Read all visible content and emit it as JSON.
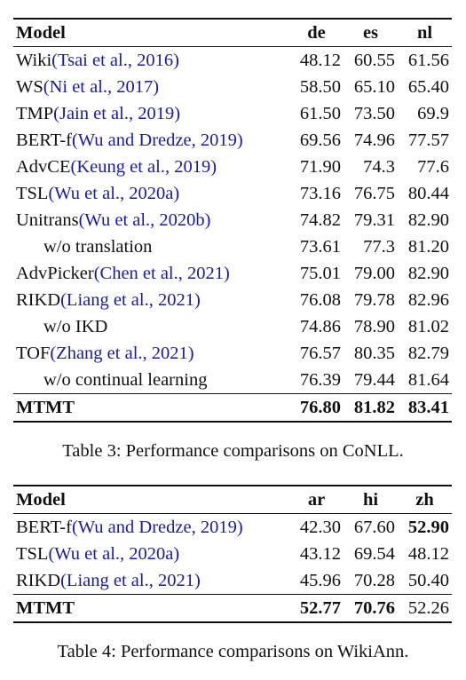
{
  "table3": {
    "headers": {
      "model": "Model",
      "c1": "de",
      "c2": "es",
      "c3": "nl"
    },
    "rows": [
      {
        "name": "Wiki",
        "cite": "(Tsai et al., 2016)",
        "v1": "48.12",
        "v2": "60.55",
        "v3": "61.56"
      },
      {
        "name": "WS",
        "cite": "(Ni et al., 2017)",
        "v1": "58.50",
        "v2": "65.10",
        "v3": "65.40"
      },
      {
        "name": "TMP",
        "cite": "(Jain et al., 2019)",
        "v1": "61.50",
        "v2": "73.50",
        "v3": "69.9"
      },
      {
        "name": "BERT-f",
        "cite": "(Wu and Dredze, 2019)",
        "v1": "69.56",
        "v2": "74.96",
        "v3": "77.57"
      },
      {
        "name": "AdvCE",
        "cite": "(Keung et al., 2019)",
        "v1": "71.90",
        "v2": "74.3",
        "v3": "77.6"
      },
      {
        "name": "TSL",
        "cite": "(Wu et al., 2020a)",
        "v1": "73.16",
        "v2": "76.75",
        "v3": "80.44"
      },
      {
        "name": "Unitrans",
        "cite": "(Wu et al., 2020b)",
        "v1": "74.82",
        "v2": "79.31",
        "v3": "82.90"
      },
      {
        "name": "w/o translation",
        "cite": "",
        "v1": "73.61",
        "v2": "77.3",
        "v3": "81.20"
      },
      {
        "name": "AdvPicker",
        "cite": "(Chen et al., 2021)",
        "v1": "75.01",
        "v2": "79.00",
        "v3": "82.90"
      },
      {
        "name": "RIKD",
        "cite": "(Liang et al., 2021)",
        "v1": "76.08",
        "v2": "79.78",
        "v3": "82.96"
      },
      {
        "name": "w/o IKD",
        "cite": "",
        "v1": "74.86",
        "v2": "78.90",
        "v3": "81.02"
      },
      {
        "name": "TOF",
        "cite": "(Zhang et al., 2021)",
        "v1": "76.57",
        "v2": "80.35",
        "v3": "82.79"
      },
      {
        "name": "w/o continual learning",
        "cite": "",
        "v1": "76.39",
        "v2": "79.44",
        "v3": "81.64"
      },
      {
        "name": "MTMT",
        "cite": "",
        "v1": "76.80",
        "v2": "81.82",
        "v3": "83.41"
      }
    ],
    "caption": "Table 3: Performance comparisons on CoNLL."
  },
  "table4": {
    "headers": {
      "model": "Model",
      "c1": "ar",
      "c2": "hi",
      "c3": "zh"
    },
    "rows": [
      {
        "name": "BERT-f",
        "cite": "(Wu and Dredze, 2019)",
        "v1": "42.30",
        "v2": "67.60",
        "v3": "52.90"
      },
      {
        "name": "TSL",
        "cite": "(Wu et al., 2020a)",
        "v1": "43.12",
        "v2": "69.54",
        "v3": "48.12"
      },
      {
        "name": "RIKD",
        "cite": "(Liang et al., 2021)",
        "v1": "45.96",
        "v2": "70.28",
        "v3": "50.40"
      },
      {
        "name": "MTMT",
        "cite": "",
        "v1": "52.77",
        "v2": "70.76",
        "v3": "52.26"
      }
    ],
    "caption": "Table 4: Performance comparisons on WikiAnn."
  }
}
